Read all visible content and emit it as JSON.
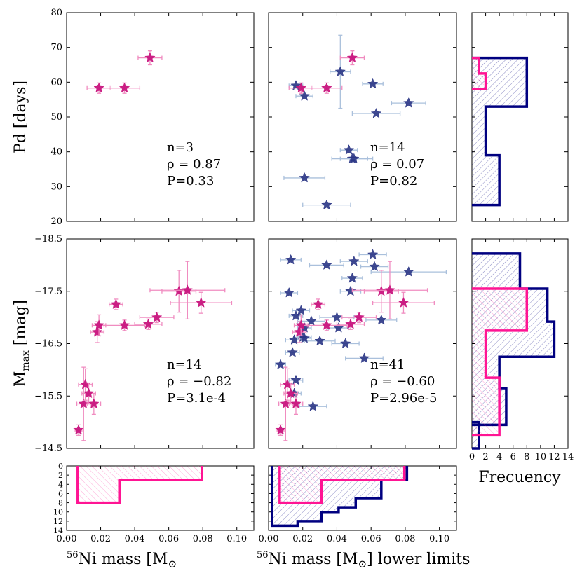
{
  "colors": {
    "pink": "#ff1493",
    "navy": "#000080",
    "pink_err": "#f08cc0",
    "navy_err": "#aac0dc",
    "star_navy": "#2a3585",
    "star_pink": "#c8157e"
  },
  "chart_data": [
    {
      "id": "pd_vs_ni_measured",
      "type": "scatter",
      "xlim": [
        0.0,
        0.11
      ],
      "ylim": [
        20,
        80
      ],
      "ylabel": "Pd [days]",
      "yticks": [
        "20",
        "30",
        "40",
        "50",
        "60",
        "70",
        "80"
      ],
      "yticks_values": [
        20,
        30,
        40,
        50,
        60,
        70,
        80
      ],
      "series": [
        {
          "name": "measured",
          "color": "pink",
          "points": [
            {
              "x": 0.019,
              "y": 58.3,
              "xerr": 0.007,
              "yerr": 1.5
            },
            {
              "x": 0.034,
              "y": 58.3,
              "xerr": 0.009,
              "yerr": 1.5
            },
            {
              "x": 0.049,
              "y": 67.0,
              "xerr": 0.007,
              "yerr": 2.0
            }
          ]
        }
      ],
      "annotation": {
        "n": "n=3",
        "rho": "ρ = 0.87",
        "p": "P=0.33"
      }
    },
    {
      "id": "pd_vs_ni_lower",
      "type": "scatter",
      "xlim": [
        0.0,
        0.11
      ],
      "ylim": [
        20,
        80
      ],
      "series": [
        {
          "name": "lower limits",
          "color": "navy",
          "points": [
            {
              "x": 0.042,
              "y": 63.0,
              "xerr": 0.006,
              "yerr": 10.5
            },
            {
              "x": 0.061,
              "y": 59.5,
              "xerr": 0.006,
              "yerr": 0
            },
            {
              "x": 0.016,
              "y": 59.0,
              "xerr": 0.004,
              "yerr": 0
            },
            {
              "x": 0.021,
              "y": 56.0,
              "xerr": 0.005,
              "yerr": 0
            },
            {
              "x": 0.082,
              "y": 54.0,
              "xerr": 0.01,
              "yerr": 0
            },
            {
              "x": 0.063,
              "y": 51.0,
              "xerr": 0.014,
              "yerr": 0
            },
            {
              "x": 0.047,
              "y": 40.5,
              "xerr": 0.005,
              "yerr": 0
            },
            {
              "x": 0.049,
              "y": 38.0,
              "xerr": 0.012,
              "yerr": 0
            },
            {
              "x": 0.05,
              "y": 38.0,
              "xerr": 0.008,
              "yerr": 0
            },
            {
              "x": 0.021,
              "y": 32.5,
              "xerr": 0.012,
              "yerr": 0
            },
            {
              "x": 0.034,
              "y": 24.7,
              "xerr": 0.014,
              "yerr": 0
            }
          ]
        },
        {
          "name": "measured",
          "color": "pink",
          "points": [
            {
              "x": 0.019,
              "y": 58.3,
              "xerr": 0.007,
              "yerr": 1.5
            },
            {
              "x": 0.034,
              "y": 58.3,
              "xerr": 0.009,
              "yerr": 1.5
            },
            {
              "x": 0.049,
              "y": 67.0,
              "xerr": 0.007,
              "yerr": 2.0
            }
          ]
        }
      ],
      "annotation": {
        "n": "n=14",
        "rho": "ρ = 0.07",
        "p": "P=0.82"
      }
    },
    {
      "id": "mmax_vs_ni_measured",
      "type": "scatter",
      "xlim": [
        0.0,
        0.11
      ],
      "ylim": [
        -14.5,
        -18.5
      ],
      "ylabel": "Mmax [mag]",
      "yticks": [
        "−18.5",
        "−17.5",
        "−16.5",
        "−15.5",
        "−14.5"
      ],
      "yticks_values": [
        -18.5,
        -17.5,
        -16.5,
        -15.5,
        -14.5
      ],
      "series": [
        {
          "name": "measured",
          "color": "pink",
          "points": [
            {
              "x": 0.007,
              "y": -14.85,
              "xerr": 0.002,
              "yerr": 0.1
            },
            {
              "x": 0.01,
              "y": -15.35,
              "xerr": 0.004,
              "yerr": 0.7
            },
            {
              "x": 0.011,
              "y": -15.72,
              "xerr": 0.004,
              "yerr": 0.3
            },
            {
              "x": 0.013,
              "y": -15.55,
              "xerr": 0.004,
              "yerr": 0.2
            },
            {
              "x": 0.016,
              "y": -15.35,
              "xerr": 0.004,
              "yerr": 0.2
            },
            {
              "x": 0.018,
              "y": -16.72,
              "xerr": 0.004,
              "yerr": 0.2
            },
            {
              "x": 0.019,
              "y": -16.85,
              "xerr": 0.004,
              "yerr": 0.2
            },
            {
              "x": 0.029,
              "y": -17.25,
              "xerr": 0.004,
              "yerr": 0.1
            },
            {
              "x": 0.034,
              "y": -16.85,
              "xerr": 0.012,
              "yerr": 0.1
            },
            {
              "x": 0.048,
              "y": -16.87,
              "xerr": 0.008,
              "yerr": 0.1
            },
            {
              "x": 0.053,
              "y": -17.0,
              "xerr": 0.01,
              "yerr": 0.1
            },
            {
              "x": 0.066,
              "y": -17.5,
              "xerr": 0.01,
              "yerr": 0.4
            },
            {
              "x": 0.071,
              "y": -17.52,
              "xerr": 0.022,
              "yerr": 0.55
            },
            {
              "x": 0.079,
              "y": -17.28,
              "xerr": 0.018,
              "yerr": 0.2
            }
          ]
        }
      ],
      "annotation": {
        "n": "n=14",
        "rho": "ρ = −0.82",
        "p": "P=3.1e-4"
      }
    },
    {
      "id": "mmax_vs_ni_lower",
      "type": "scatter",
      "xlim": [
        0.0,
        0.11
      ],
      "ylim": [
        -14.5,
        -18.5
      ],
      "series": [
        {
          "name": "lower limits",
          "color": "navy",
          "points": [
            {
              "x": 0.061,
              "y": -18.2,
              "xerr": 0.008,
              "yerr": 0
            },
            {
              "x": 0.013,
              "y": -18.1,
              "xerr": 0.006,
              "yerr": 0
            },
            {
              "x": 0.05,
              "y": -18.07,
              "xerr": 0.008,
              "yerr": 0
            },
            {
              "x": 0.034,
              "y": -18.0,
              "xerr": 0.01,
              "yerr": 0
            },
            {
              "x": 0.062,
              "y": -17.97,
              "xerr": 0.008,
              "yerr": 0
            },
            {
              "x": 0.082,
              "y": -17.87,
              "xerr": 0.022,
              "yerr": 0
            },
            {
              "x": 0.049,
              "y": -17.75,
              "xerr": 0.006,
              "yerr": 0
            },
            {
              "x": 0.012,
              "y": -17.47,
              "xerr": 0.005,
              "yerr": 0
            },
            {
              "x": 0.048,
              "y": -17.5,
              "xerr": 0.006,
              "yerr": 0
            },
            {
              "x": 0.019,
              "y": -17.13,
              "xerr": 0.005,
              "yerr": 0
            },
            {
              "x": 0.016,
              "y": -17.03,
              "xerr": 0.004,
              "yerr": 0
            },
            {
              "x": 0.04,
              "y": -17.0,
              "xerr": 0.01,
              "yerr": 0
            },
            {
              "x": 0.025,
              "y": -16.93,
              "xerr": 0.008,
              "yerr": 0
            },
            {
              "x": 0.066,
              "y": -16.95,
              "xerr": 0.009,
              "yerr": 0
            },
            {
              "x": 0.041,
              "y": -16.8,
              "xerr": 0.006,
              "yerr": 0
            },
            {
              "x": 0.021,
              "y": -16.8,
              "xerr": 0.004,
              "yerr": 0
            },
            {
              "x": 0.02,
              "y": -16.62,
              "xerr": 0.005,
              "yerr": 0
            },
            {
              "x": 0.015,
              "y": -16.57,
              "xerr": 0.005,
              "yerr": 0
            },
            {
              "x": 0.03,
              "y": -16.55,
              "xerr": 0.009,
              "yerr": 0
            },
            {
              "x": 0.045,
              "y": -16.5,
              "xerr": 0.008,
              "yerr": 0
            },
            {
              "x": 0.014,
              "y": -16.33,
              "xerr": 0.004,
              "yerr": 0
            },
            {
              "x": 0.056,
              "y": -16.22,
              "xerr": 0.011,
              "yerr": 0
            },
            {
              "x": 0.007,
              "y": -16.1,
              "xerr": 0.003,
              "yerr": 0
            },
            {
              "x": 0.015,
              "y": -15.55,
              "xerr": 0.004,
              "yerr": 0
            },
            {
              "x": 0.026,
              "y": -15.3,
              "xerr": 0.008,
              "yerr": 0
            },
            {
              "x": 0.016,
              "y": -15.8,
              "xerr": 0.004,
              "yerr": 0
            },
            {
              "x": 0.021,
              "y": -16.6,
              "xerr": 0.004,
              "yerr": 0
            }
          ]
        },
        {
          "name": "measured",
          "color": "pink",
          "points": [
            {
              "x": 0.007,
              "y": -14.85,
              "xerr": 0.002,
              "yerr": 0.1
            },
            {
              "x": 0.01,
              "y": -15.35,
              "xerr": 0.004,
              "yerr": 0.7
            },
            {
              "x": 0.011,
              "y": -15.72,
              "xerr": 0.004,
              "yerr": 0.3
            },
            {
              "x": 0.013,
              "y": -15.55,
              "xerr": 0.004,
              "yerr": 0.2
            },
            {
              "x": 0.016,
              "y": -15.35,
              "xerr": 0.004,
              "yerr": 0.2
            },
            {
              "x": 0.018,
              "y": -16.72,
              "xerr": 0.004,
              "yerr": 0.2
            },
            {
              "x": 0.019,
              "y": -16.85,
              "xerr": 0.004,
              "yerr": 0.2
            },
            {
              "x": 0.029,
              "y": -17.25,
              "xerr": 0.004,
              "yerr": 0.1
            },
            {
              "x": 0.034,
              "y": -16.85,
              "xerr": 0.012,
              "yerr": 0.1
            },
            {
              "x": 0.048,
              "y": -16.87,
              "xerr": 0.008,
              "yerr": 0.1
            },
            {
              "x": 0.053,
              "y": -17.0,
              "xerr": 0.01,
              "yerr": 0.1
            },
            {
              "x": 0.066,
              "y": -17.5,
              "xerr": 0.01,
              "yerr": 0.4
            },
            {
              "x": 0.071,
              "y": -17.52,
              "xerr": 0.022,
              "yerr": 0.55
            },
            {
              "x": 0.079,
              "y": -17.28,
              "xerr": 0.018,
              "yerr": 0.2
            }
          ]
        }
      ],
      "annotation": {
        "n": "n=41",
        "rho": "ρ = −0.60",
        "p": "P=2.96e-5"
      }
    },
    {
      "id": "hist_x_measured",
      "type": "histogram",
      "orientation": "vertical-down",
      "xlim": [
        0.0,
        0.11
      ],
      "ylim": [
        0,
        14
      ],
      "yticks": [
        "0",
        "2",
        "4",
        "6",
        "8",
        "10",
        "12",
        "14"
      ],
      "yticks_values": [
        0,
        2,
        4,
        6,
        8,
        10,
        12,
        14
      ],
      "xticks": [
        "0.00",
        "0.02",
        "0.04",
        "0.06",
        "0.08",
        "0.10"
      ],
      "xticks_values": [
        0.0,
        0.02,
        0.04,
        0.06,
        0.08,
        0.1
      ],
      "xlabel": "56Ni mass [M⊙",
      "series": [
        {
          "name": "measured",
          "color": "pink",
          "edges": [
            0.0065,
            0.031,
            0.0795
          ],
          "counts": [
            8,
            3
          ]
        }
      ]
    },
    {
      "id": "hist_x_lower",
      "type": "histogram",
      "orientation": "vertical-down",
      "xlim": [
        0.0,
        0.11
      ],
      "ylim": [
        0,
        14
      ],
      "xticks": [
        "0.00",
        "0.02",
        "0.04",
        "0.06",
        "0.08",
        "0.10"
      ],
      "xticks_values": [
        0.0,
        0.02,
        0.04,
        0.06,
        0.08,
        0.1
      ],
      "xlabel": "56Ni mass [M⊙] lower limits",
      "series": [
        {
          "name": "lower limits",
          "color": "navy",
          "edges": [
            0.002,
            0.017,
            0.031,
            0.041,
            0.051,
            0.066,
            0.081
          ],
          "counts": [
            13,
            12,
            10,
            9,
            7,
            3
          ]
        },
        {
          "name": "measured",
          "color": "pink",
          "edges": [
            0.0065,
            0.031,
            0.0795
          ],
          "counts": [
            8,
            3
          ]
        }
      ]
    },
    {
      "id": "hist_pd",
      "type": "histogram",
      "orientation": "horizontal",
      "xlim": [
        0,
        14
      ],
      "ylim": [
        20,
        80
      ],
      "series": [
        {
          "name": "lower limits",
          "color": "navy",
          "edges": [
            24.7,
            39.0,
            53.0,
            67.0
          ],
          "counts": [
            4,
            2,
            8
          ]
        },
        {
          "name": "measured",
          "color": "pink",
          "edges": [
            58.0,
            62.5,
            67.0
          ],
          "counts": [
            2,
            1
          ]
        }
      ]
    },
    {
      "id": "hist_mmax",
      "type": "histogram",
      "orientation": "horizontal",
      "xlim": [
        0,
        14
      ],
      "ylim": [
        -14.5,
        -18.5
      ],
      "xticks": [
        "0",
        "2",
        "4",
        "6",
        "8",
        "10",
        "12",
        "14"
      ],
      "xticks_values": [
        0,
        2,
        4,
        6,
        8,
        10,
        12,
        14
      ],
      "xlabel": "Frecuency",
      "series": [
        {
          "name": "lower limits",
          "color": "navy",
          "edges": [
            -14.5,
            -14.95,
            -15.65,
            -16.25,
            -16.92,
            -17.55,
            -18.22
          ],
          "counts": [
            1,
            5,
            4,
            12,
            11,
            7
          ]
        },
        {
          "name": "measured",
          "color": "pink",
          "edges": [
            -14.75,
            -15.25,
            -15.85,
            -16.75,
            -17.55
          ],
          "counts": [
            4,
            4,
            2,
            8
          ]
        },
        {
          "name": "measured-base",
          "color": "navy",
          "edges": [
            -14.95,
            -15.0
          ],
          "counts": [
            1
          ]
        }
      ]
    }
  ],
  "labels": {
    "pd_ylabel": "Pd [days]",
    "mmax_ylabel_main": "M",
    "mmax_ylabel_sub": "max",
    "mmax_ylabel_rest": " [mag]",
    "xlabel1_sup": "56",
    "xlabel1_rest": "Ni mass [M",
    "xlabel1_sun": "⊙",
    "xlabel2_sup": "56",
    "xlabel2_rest": "Ni mass [M",
    "xlabel2_sun": "⊙",
    "xlabel2_tail": "] lower limits",
    "freq_label": "Frecuency"
  }
}
